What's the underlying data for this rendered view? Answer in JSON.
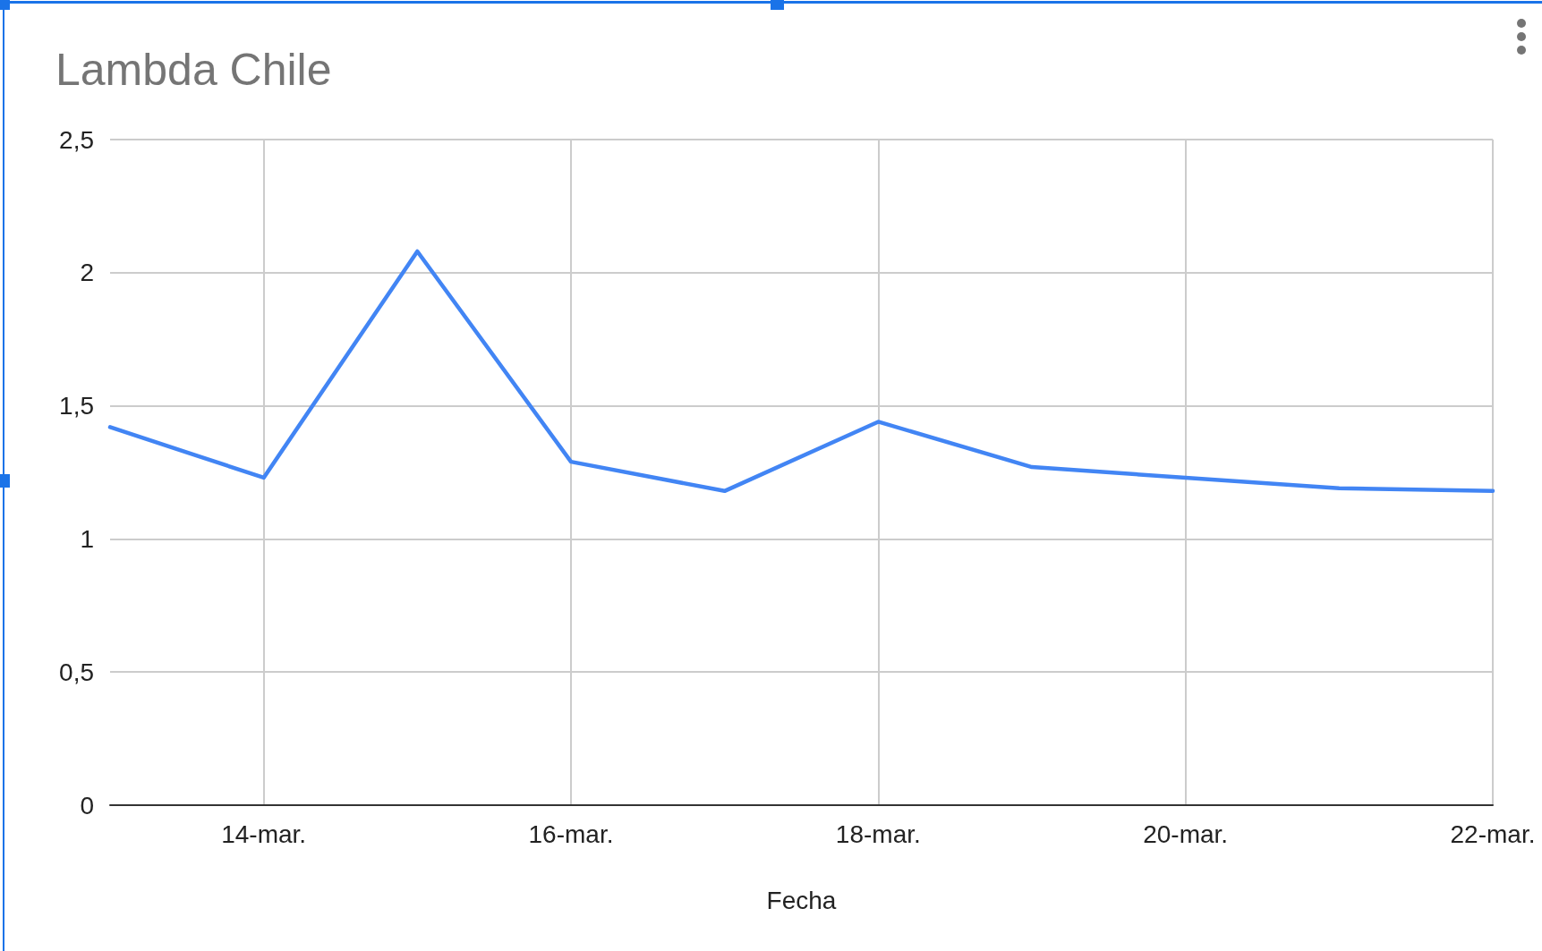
{
  "chart_data": {
    "type": "line",
    "title": "Lambda Chile",
    "xlabel": "Fecha",
    "x": [
      "--03-13",
      "--03-14",
      "--03-15",
      "--03-16",
      "--03-17",
      "--03-18",
      "--03-19",
      "--03-20",
      "--03-21",
      "--03-22"
    ],
    "values": [
      1.42,
      1.23,
      2.08,
      1.29,
      1.18,
      1.44,
      1.27,
      1.23,
      1.19,
      1.18
    ],
    "color": "#4285f4",
    "xlim": [
      "--03-13",
      "--03-22"
    ],
    "xticks": [
      {
        "value": "--03-14",
        "label": "14-mar."
      },
      {
        "value": "--03-16",
        "label": "16-mar."
      },
      {
        "value": "--03-18",
        "label": "18-mar."
      },
      {
        "value": "--03-20",
        "label": "20-mar."
      },
      {
        "value": "--03-22",
        "label": "22-mar."
      }
    ],
    "ylim": [
      0,
      2.5
    ],
    "yticks": [
      0,
      {
        "value": 0.5,
        "label": "0,5"
      },
      1,
      {
        "value": 1.5,
        "label": "1,5"
      },
      2,
      {
        "value": 2.5,
        "label": "2,5"
      }
    ],
    "grid": true,
    "marker": "none",
    "line_style": "solid"
  }
}
